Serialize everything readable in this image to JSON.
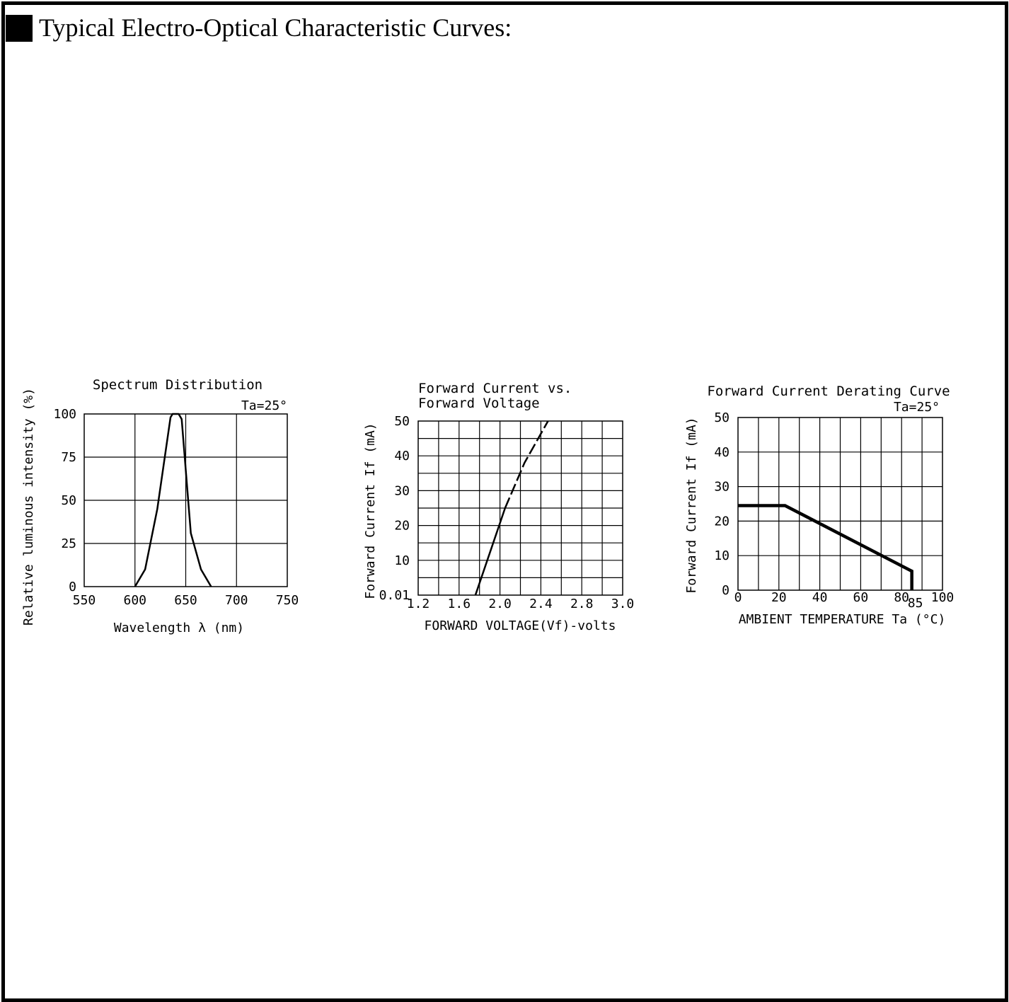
{
  "header": {
    "title": "Typical Electro-Optical Characteristic Curves:"
  },
  "chart_data": [
    {
      "type": "line",
      "title": "Spectrum Distribution",
      "subtitle": "Ta=25°",
      "xlabel": "Wavelength λ (nm)",
      "ylabel": "Relative luminous intensity (%)",
      "xlim": [
        550,
        750
      ],
      "ylim": [
        0,
        100
      ],
      "x_ticks": [
        "550",
        "600",
        "650",
        "700",
        "750"
      ],
      "y_ticks": [
        "0",
        "25",
        "50",
        "75",
        "100"
      ],
      "grid": true,
      "series": [
        {
          "x": [
            600,
            610,
            622,
            635,
            637,
            640,
            643,
            646,
            655,
            665,
            675
          ],
          "y": [
            0,
            10,
            45,
            98,
            100,
            100,
            100,
            97,
            31,
            10,
            0
          ]
        }
      ]
    },
    {
      "type": "line",
      "title": "Forward Current vs.",
      "title_line2": "Forward Voltage",
      "xlabel": "FORWARD VOLTAGE(Vf)-volts",
      "ylabel": "Forward Current If (mA)",
      "xlim": [
        1.2,
        3.2
      ],
      "ylim": [
        0,
        50
      ],
      "x_ticks": [
        "1.2",
        "1.6",
        "2.0",
        "2.4",
        "2.8",
        "3.0"
      ],
      "y_ticks": [
        "0.01",
        "10",
        "20",
        "30",
        "40",
        "50"
      ],
      "grid": true,
      "series": [
        {
          "style": "solid",
          "x": [
            1.76,
            2.05
          ],
          "y": [
            0.01,
            25
          ]
        },
        {
          "style": "dashed",
          "x": [
            2.05,
            2.24,
            2.47
          ],
          "y": [
            25,
            38,
            50
          ]
        }
      ]
    },
    {
      "type": "line",
      "title": "Forward Current Derating Curve",
      "subtitle": "Ta=25°",
      "xlabel": "AMBIENT TEMPERATURE Ta (°C)",
      "ylabel": "Forward Current If (mA)",
      "xlim": [
        0,
        100
      ],
      "ylim": [
        0,
        50
      ],
      "x_ticks": [
        "0",
        "20",
        "40",
        "60",
        "80",
        "100"
      ],
      "x_extra_tick": "85",
      "y_ticks": [
        "0",
        "10",
        "20",
        "30",
        "40",
        "50"
      ],
      "grid": true,
      "series": [
        {
          "x": [
            0,
            23,
            85,
            85
          ],
          "y": [
            24.5,
            24.5,
            5.5,
            0
          ]
        }
      ]
    }
  ]
}
